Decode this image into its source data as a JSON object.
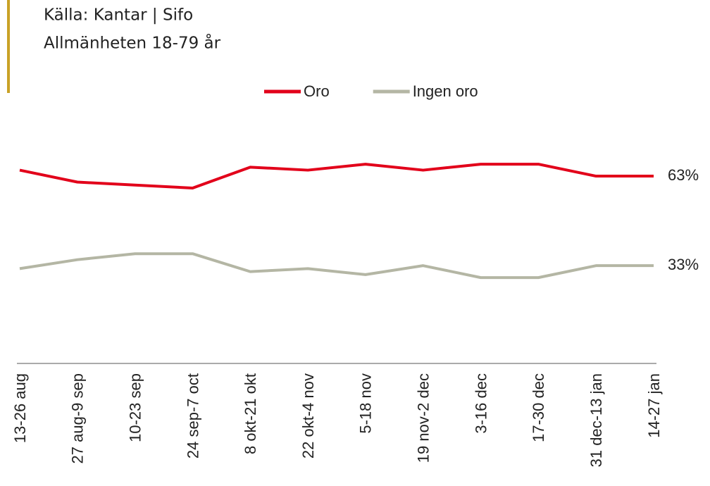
{
  "chart_data": {
    "type": "line",
    "title": "Källa: Kantar | Sifo",
    "subtitle": "Allmänheten 18-79 år",
    "categories": [
      "13-26 aug",
      "27 aug-9 sep",
      "10-23 sep",
      "24 sep-7 oct",
      "8 okt-21 okt",
      "22 okt-4 nov",
      "5-18 nov",
      "19 nov-2 dec",
      "3-16 dec",
      "17-30 dec",
      "31 dec-13 jan",
      "14-27 jan"
    ],
    "series": [
      {
        "name": "Oro",
        "color": "#e2001a",
        "values": [
          65,
          61,
          60,
          59,
          66,
          65,
          67,
          65,
          67,
          67,
          63,
          63
        ],
        "value_labels": [
          null,
          null,
          null,
          null,
          null,
          null,
          null,
          null,
          null,
          null,
          null,
          "63%"
        ]
      },
      {
        "name": "Ingen oro",
        "color": "#b4b6a4",
        "values": [
          32,
          35,
          37,
          37,
          31,
          32,
          30,
          33,
          29,
          29,
          33,
          33
        ],
        "value_labels": [
          null,
          null,
          null,
          null,
          null,
          null,
          null,
          null,
          null,
          null,
          null,
          "33%"
        ]
      }
    ],
    "ylim": [
      0,
      80
    ],
    "grid": false,
    "legend": "top"
  }
}
